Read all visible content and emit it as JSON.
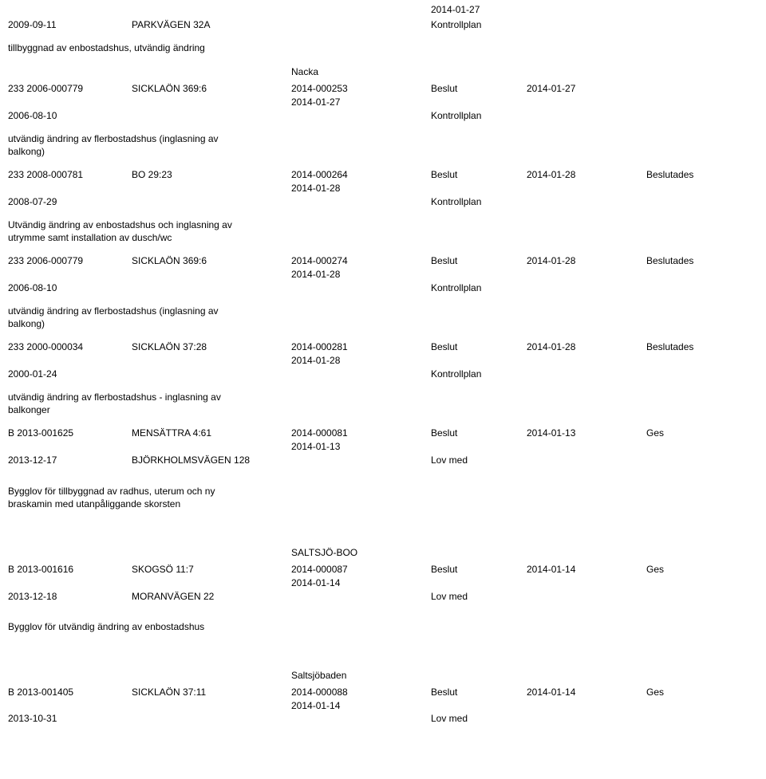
{
  "header": {
    "cut_date": "2014-01-27"
  },
  "records": [
    {
      "type": "data",
      "line1": {
        "a": "2009-09-11",
        "b": "PARKVÄGEN 32A",
        "c": "",
        "d": "Kontrollplan"
      },
      "desc": "tillbyggnad av enbostadshus, utvändig ändring"
    },
    {
      "heading": "Nacka",
      "type": "data",
      "line1": {
        "a": "233 2006-000779",
        "b": "SICKLAÖN 369:6",
        "c": "2014-000253",
        "d": "Beslut",
        "e": "2014-01-27"
      },
      "line2": {
        "c": "2014-01-27"
      },
      "line3": {
        "a": "2006-08-10",
        "d": "Kontrollplan"
      },
      "desc": "utvändig ändring av flerbostadshus (inglasning av balkong)"
    },
    {
      "type": "data",
      "line1": {
        "a": "233 2008-000781",
        "b": "BO 29:23",
        "c": "2014-000264",
        "d": "Beslut",
        "e": "2014-01-28",
        "f": "Beslutades"
      },
      "line2": {
        "c": "2014-01-28"
      },
      "line3": {
        "a": "2008-07-29",
        "d": "Kontrollplan"
      },
      "desc": "Utvändig ändring av enbostadshus och inglasning av utrymme samt installation av dusch/wc"
    },
    {
      "type": "data",
      "line1": {
        "a": "233 2006-000779",
        "b": "SICKLAÖN 369:6",
        "c": "2014-000274",
        "d": "Beslut",
        "e": "2014-01-28",
        "f": "Beslutades"
      },
      "line2": {
        "c": "2014-01-28"
      },
      "line3": {
        "a": "2006-08-10",
        "d": "Kontrollplan"
      },
      "desc": "utvändig ändring av flerbostadshus (inglasning av balkong)"
    },
    {
      "type": "data",
      "line1": {
        "a": "233 2000-000034",
        "b": "SICKLAÖN 37:28",
        "c": "2014-000281",
        "d": "Beslut",
        "e": "2014-01-28",
        "f": "Beslutades"
      },
      "line2": {
        "c": "2014-01-28"
      },
      "line3": {
        "a": "2000-01-24",
        "d": "Kontrollplan"
      },
      "desc": "utvändig ändring av flerbostadshus - inglasning av balkonger"
    },
    {
      "type": "data",
      "line1": {
        "a": "B 2013-001625",
        "b": "MENSÄTTRA 4:61",
        "c": "2014-000081",
        "d": "Beslut",
        "e": "2014-01-13",
        "f": "Ges"
      },
      "line2": {
        "c": "2014-01-13"
      },
      "line3": {
        "a": "2013-12-17",
        "b": "BJÖRKHOLMSVÄGEN 128",
        "d": "Lov med"
      },
      "desc": "Bygglov för tillbyggnad av radhus, uterum och ny braskamin med utanpåliggande skorsten"
    },
    {
      "heading": "SALTSJÖ-BOO",
      "type": "data",
      "line1": {
        "a": "B 2013-001616",
        "b": "SKOGSÖ 11:7",
        "c": "2014-000087",
        "d": "Beslut",
        "e": "2014-01-14",
        "f": "Ges"
      },
      "line2": {
        "c": "2014-01-14"
      },
      "line3": {
        "a": "2013-12-18",
        "b": "MORANVÄGEN 22",
        "d": "Lov med"
      },
      "desc": "Bygglov för utvändig ändring av enbostadshus"
    },
    {
      "heading": "Saltsjöbaden",
      "type": "data",
      "line1": {
        "a": "B 2013-001405",
        "b": "SICKLAÖN 37:11",
        "c": "2014-000088",
        "d": "Beslut",
        "e": "2014-01-14",
        "f": "Ges"
      },
      "line2": {
        "c": "2014-01-14"
      },
      "line3": {
        "a": "2013-10-31",
        "d": "Lov med"
      }
    }
  ]
}
